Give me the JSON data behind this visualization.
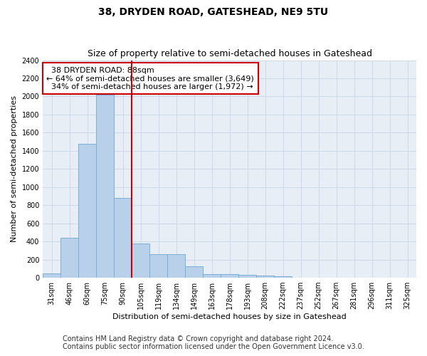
{
  "title": "38, DRYDEN ROAD, GATESHEAD, NE9 5TU",
  "subtitle": "Size of property relative to semi-detached houses in Gateshead",
  "xlabel": "Distribution of semi-detached houses by size in Gateshead",
  "ylabel": "Number of semi-detached properties",
  "categories": [
    "31sqm",
    "46sqm",
    "60sqm",
    "75sqm",
    "90sqm",
    "105sqm",
    "119sqm",
    "134sqm",
    "149sqm",
    "163sqm",
    "178sqm",
    "193sqm",
    "208sqm",
    "222sqm",
    "237sqm",
    "252sqm",
    "267sqm",
    "281sqm",
    "296sqm",
    "311sqm",
    "325sqm"
  ],
  "values": [
    45,
    440,
    1480,
    2020,
    880,
    375,
    260,
    260,
    130,
    40,
    40,
    30,
    25,
    20,
    0,
    0,
    0,
    0,
    0,
    0,
    0
  ],
  "bar_color": "#b8d0ea",
  "bar_edge_color": "#7aafd4",
  "property_label": "38 DRYDEN ROAD: 88sqm",
  "pct_smaller": 64,
  "n_smaller": 3649,
  "pct_larger": 34,
  "n_larger": 1972,
  "vline_color": "#cc0000",
  "vline_position": 4.5,
  "annotation_box_color": "#ffffff",
  "annotation_box_edge": "#cc0000",
  "ylim": [
    0,
    2400
  ],
  "yticks": [
    0,
    200,
    400,
    600,
    800,
    1000,
    1200,
    1400,
    1600,
    1800,
    2000,
    2200,
    2400
  ],
  "grid_color": "#cdd8e8",
  "bg_color": "#e8eef5",
  "footer_line1": "Contains HM Land Registry data © Crown copyright and database right 2024.",
  "footer_line2": "Contains public sector information licensed under the Open Government Licence v3.0.",
  "title_fontsize": 10,
  "subtitle_fontsize": 9,
  "axis_label_fontsize": 8,
  "tick_fontsize": 7,
  "annotation_fontsize": 8,
  "footer_fontsize": 7
}
